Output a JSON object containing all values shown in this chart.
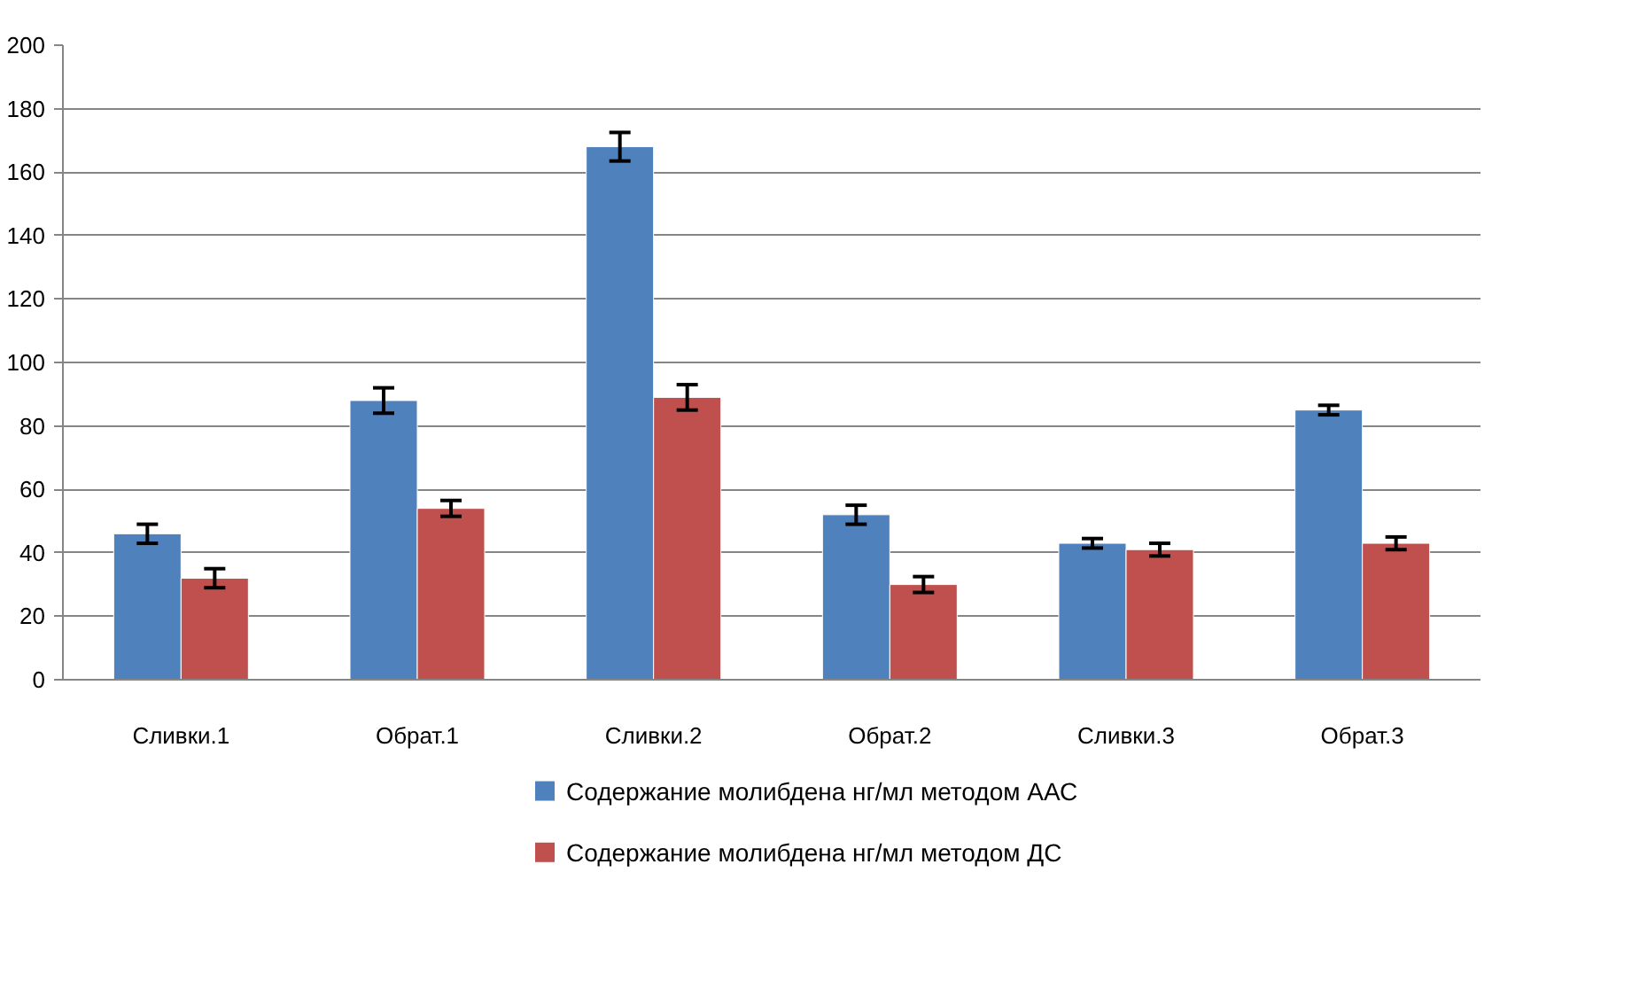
{
  "chart_data": {
    "type": "bar",
    "categories": [
      "Сливки.1",
      "Обрат.1",
      "Сливки.2",
      "Обрат.2",
      "Сливки.3",
      "Обрат.3"
    ],
    "series": [
      {
        "name": "Содержание молибдена нг/мл методом ААС",
        "color": "#4f81bd",
        "values": [
          46,
          88,
          168,
          52,
          43,
          85
        ],
        "errors": [
          3,
          4,
          4.5,
          3,
          1.5,
          1.5
        ]
      },
      {
        "name": "Содержание молибдена нг/мл методом ДС",
        "color": "#c0504d",
        "values": [
          32,
          54,
          89,
          30,
          41,
          43
        ],
        "errors": [
          3,
          2.5,
          4,
          2.5,
          2,
          2
        ]
      }
    ],
    "ylim": [
      0,
      200
    ],
    "yticks": [
      0,
      20,
      40,
      60,
      80,
      100,
      120,
      140,
      160,
      180,
      200
    ],
    "grid": "y",
    "legend": "bottom"
  }
}
